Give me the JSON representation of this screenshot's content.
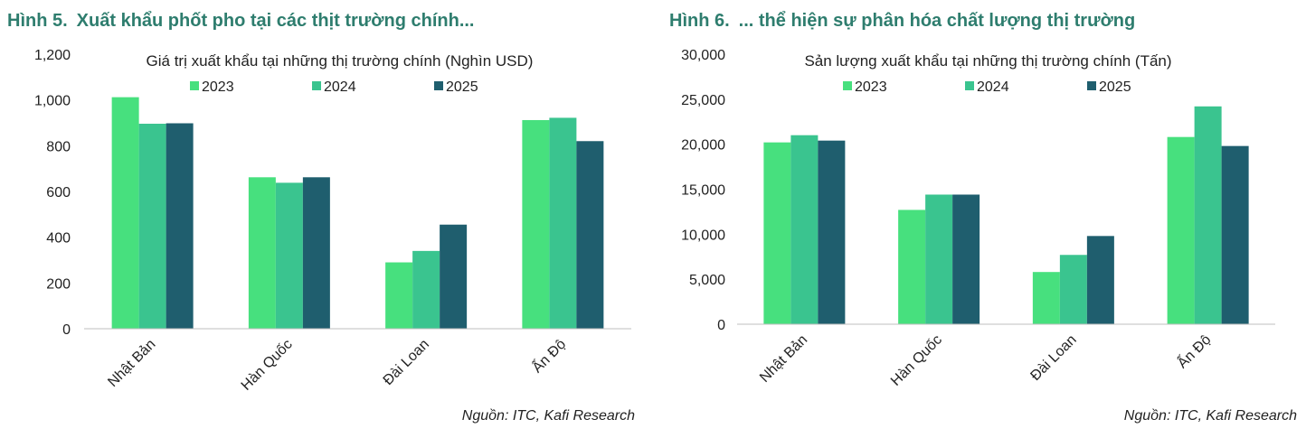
{
  "figures": [
    {
      "number": "Hình 5.",
      "title": "Xuất khẩu phốt pho tại các thịt trường chính...",
      "source": "Nguồn: ITC, Kafi Research",
      "chart_data": {
        "type": "bar",
        "title": "Giá trị xuất khẩu tại những thị trường chính (Nghìn USD)",
        "categories": [
          "Nhật Bản",
          "Hàn Quốc",
          "Đài Loan",
          "Ấn Độ"
        ],
        "series": [
          {
            "name": "2023",
            "values": [
              1012,
              662,
              290,
              912
            ],
            "color": "#47e07e"
          },
          {
            "name": "2024",
            "values": [
              896,
              638,
              340,
              922
            ],
            "color": "#3ac48f"
          },
          {
            "name": "2025",
            "values": [
              898,
              662,
              455,
              820
            ],
            "color": "#1f5e6e"
          }
        ],
        "yticks": [
          0,
          200,
          400,
          600,
          800,
          1000,
          1200
        ],
        "ytick_labels": [
          "0",
          "200",
          "400",
          "600",
          "800",
          "1,000",
          "1,200"
        ],
        "ylim": [
          0,
          1200
        ],
        "legend": "top-center",
        "grid": false
      }
    },
    {
      "number": "Hình 6.",
      "title": "... thể hiện sự phân hóa chất lượng thị trường",
      "source": "Nguồn: ITC, Kafi Research",
      "chart_data": {
        "type": "bar",
        "title": "Sản lượng xuất khẩu tại những thị trường chính (Tấn)",
        "categories": [
          "Nhật Bản",
          "Hàn Quốc",
          "Đài Loan",
          "Ấn Độ"
        ],
        "series": [
          {
            "name": "2023",
            "values": [
              20200,
              12700,
              5800,
              20800
            ],
            "color": "#47e07e"
          },
          {
            "name": "2024",
            "values": [
              21000,
              14400,
              7700,
              24200
            ],
            "color": "#3ac48f"
          },
          {
            "name": "2025",
            "values": [
              20400,
              14400,
              9800,
              19800
            ],
            "color": "#1f5e6e"
          }
        ],
        "yticks": [
          0,
          5000,
          10000,
          15000,
          20000,
          25000,
          30000
        ],
        "ytick_labels": [
          "0",
          "5,000",
          "10,000",
          "15,000",
          "20,000",
          "25,000",
          "30,000"
        ],
        "ylim": [
          0,
          30000
        ],
        "legend": "top-center",
        "grid": false
      }
    }
  ]
}
